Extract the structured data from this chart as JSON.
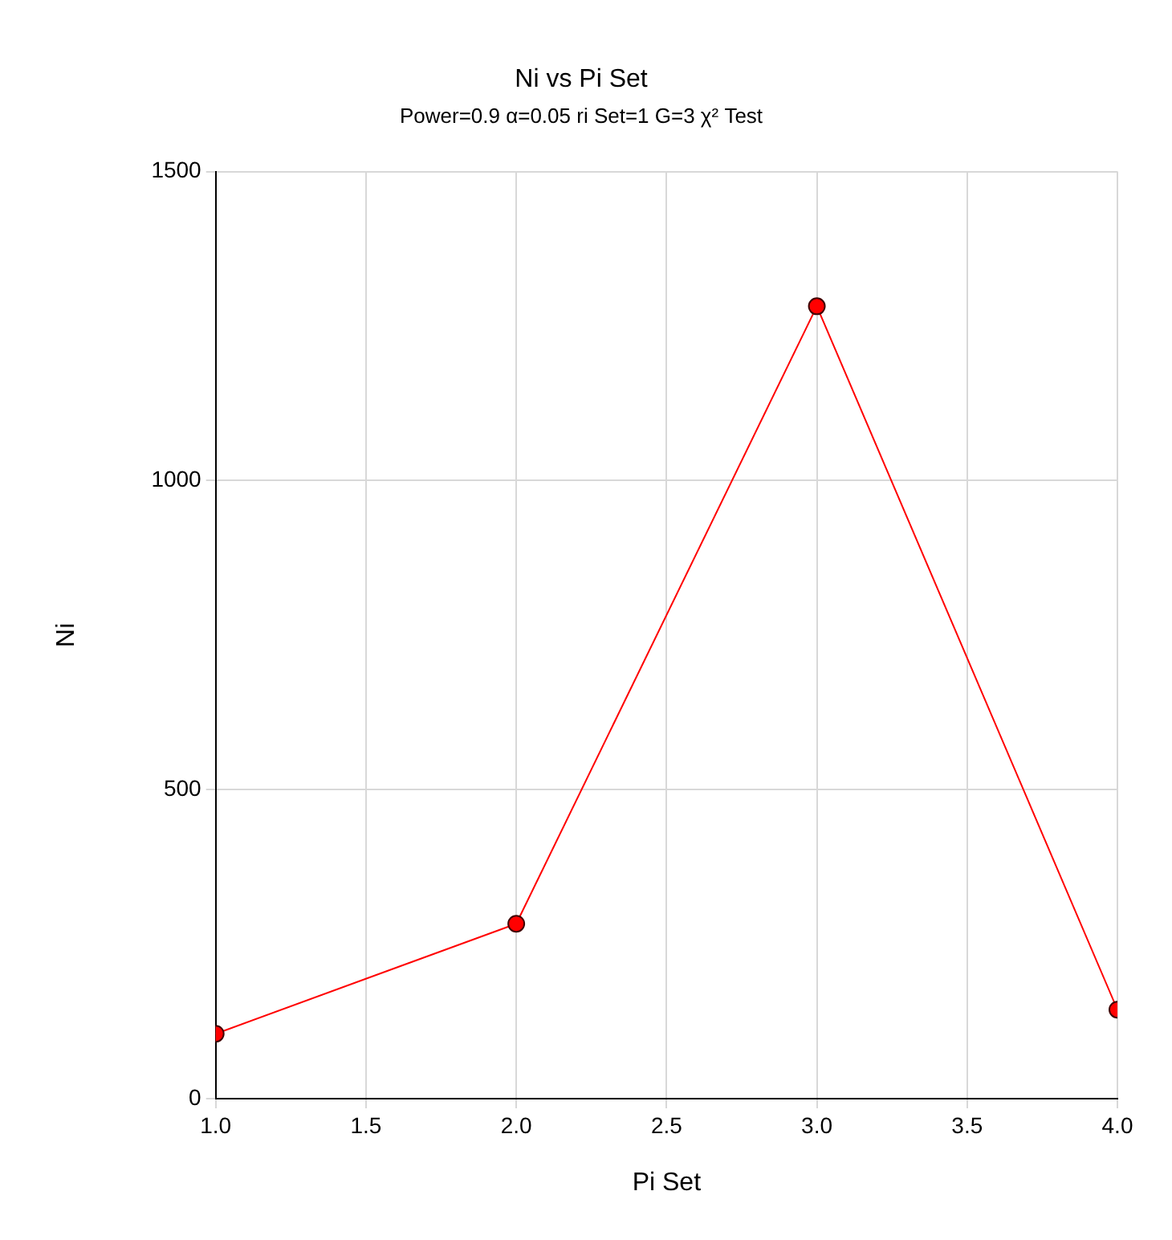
{
  "chart_data": {
    "type": "line",
    "title": "Ni vs Pi Set",
    "subtitle": "Power=0.9 α=0.05 ri Set=1 G=3 χ² Test",
    "xlabel": "Pi Set",
    "ylabel": "Ni",
    "x": [
      1,
      2,
      3,
      4
    ],
    "series": [
      {
        "color": "#ff0000",
        "values": [
          105,
          283,
          1282,
          144
        ]
      }
    ],
    "xlim": [
      1,
      4
    ],
    "xticks": [
      {
        "value": 1,
        "label": "1.0"
      },
      {
        "value": 1.5,
        "label": "1.5"
      },
      {
        "value": 2,
        "label": "2.0"
      },
      {
        "value": 2.5,
        "label": "2.5"
      },
      {
        "value": 3,
        "label": "3.0"
      },
      {
        "value": 3.5,
        "label": "3.5"
      },
      {
        "value": 4,
        "label": "4.0"
      }
    ],
    "ylim": [
      0,
      1500
    ],
    "yticks": [
      0,
      500,
      1000,
      1500
    ],
    "grid": true,
    "legend": false,
    "marker": "circle",
    "line_style": "solid"
  }
}
